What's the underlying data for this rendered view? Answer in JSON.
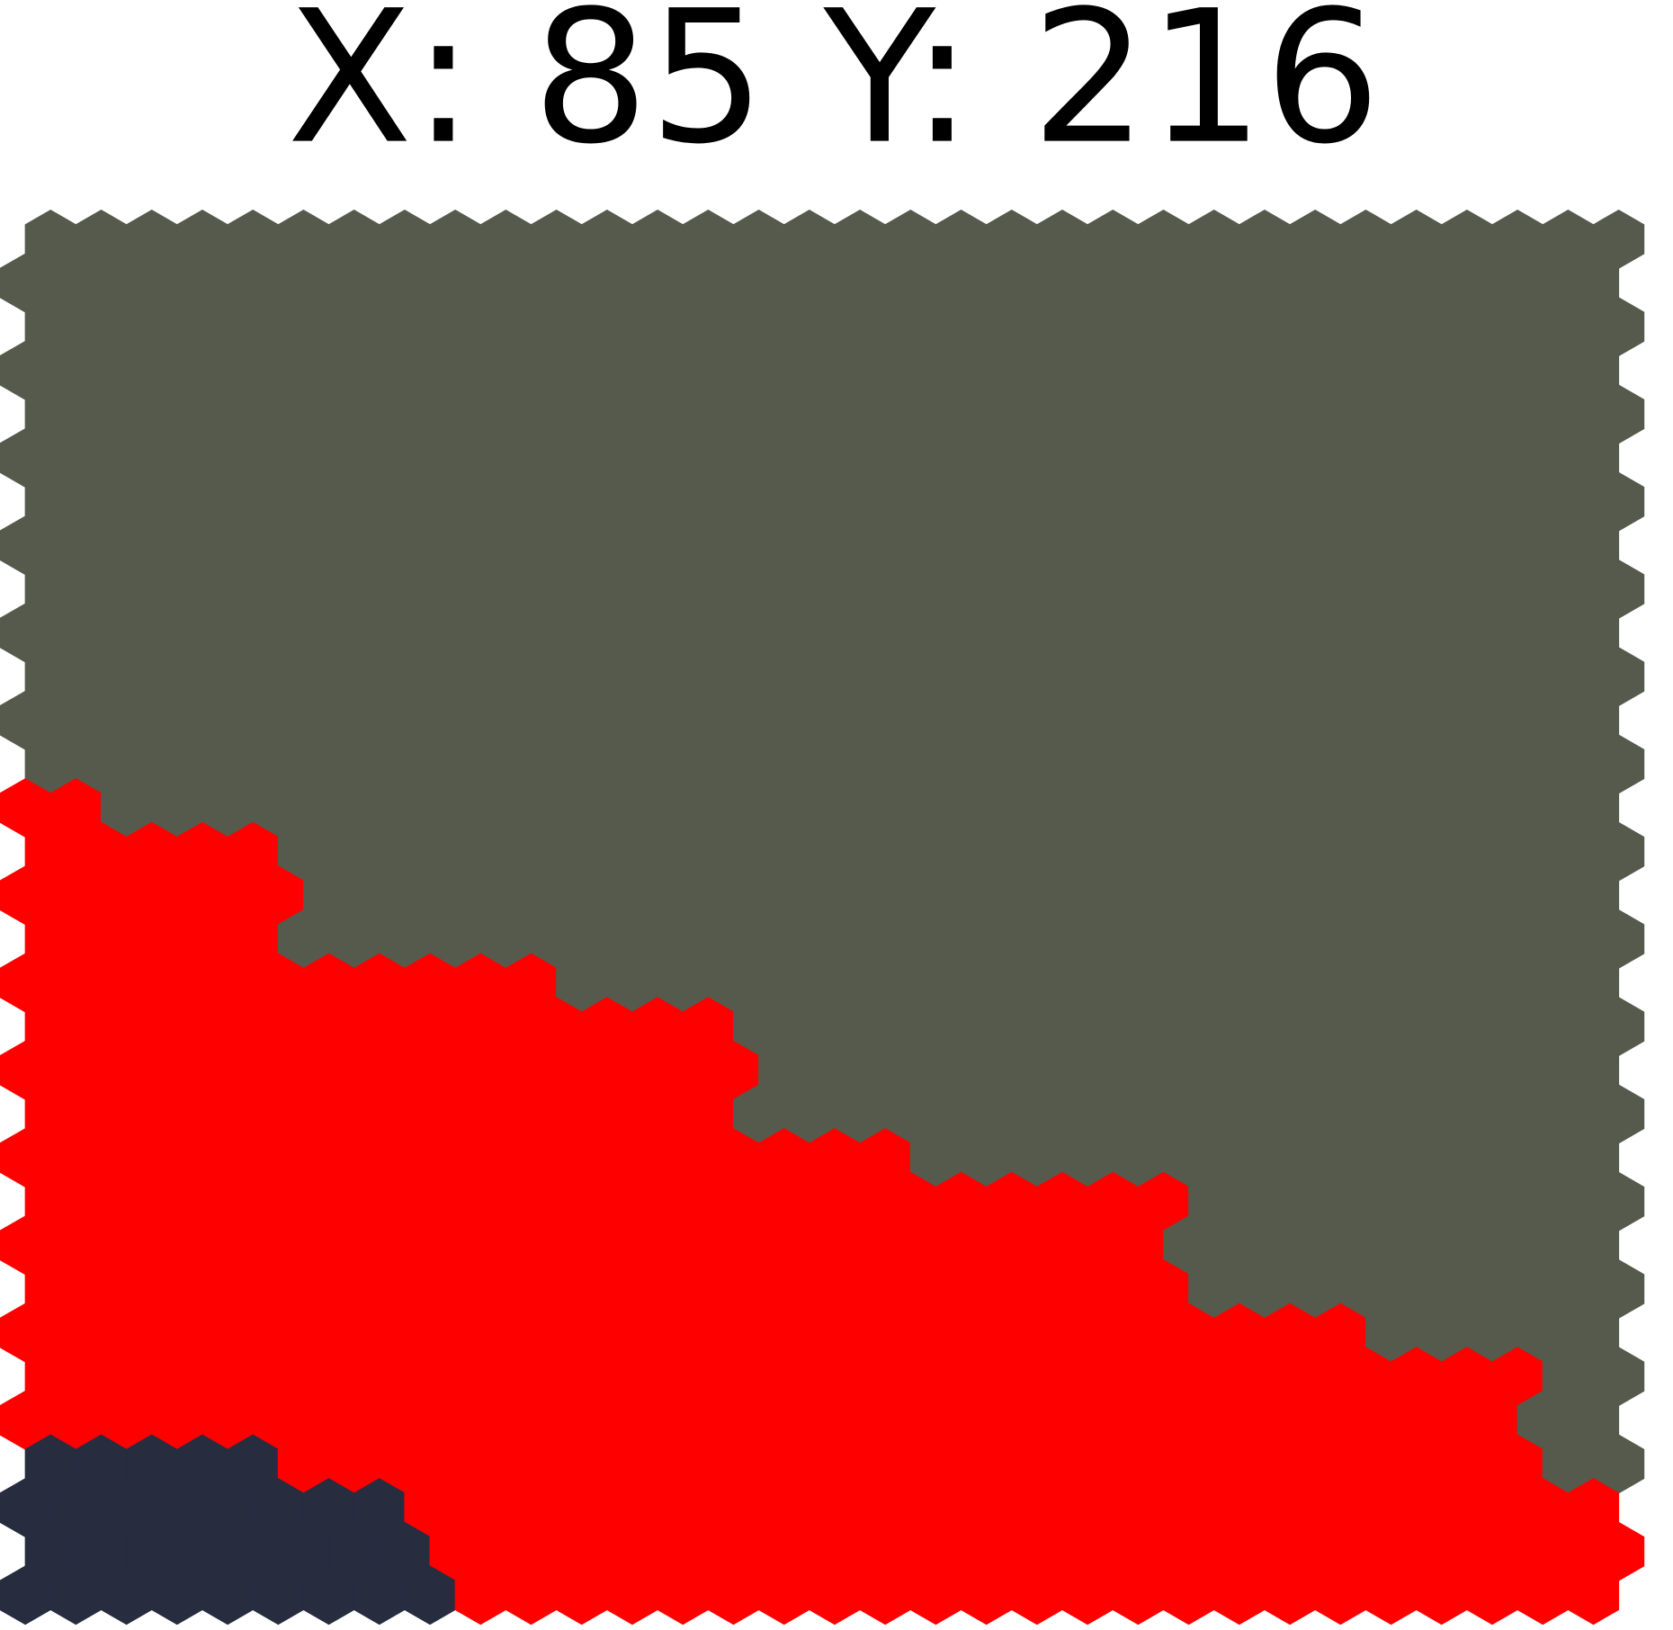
{
  "header": {
    "title": "X: 85 Y: 216"
  }
}
